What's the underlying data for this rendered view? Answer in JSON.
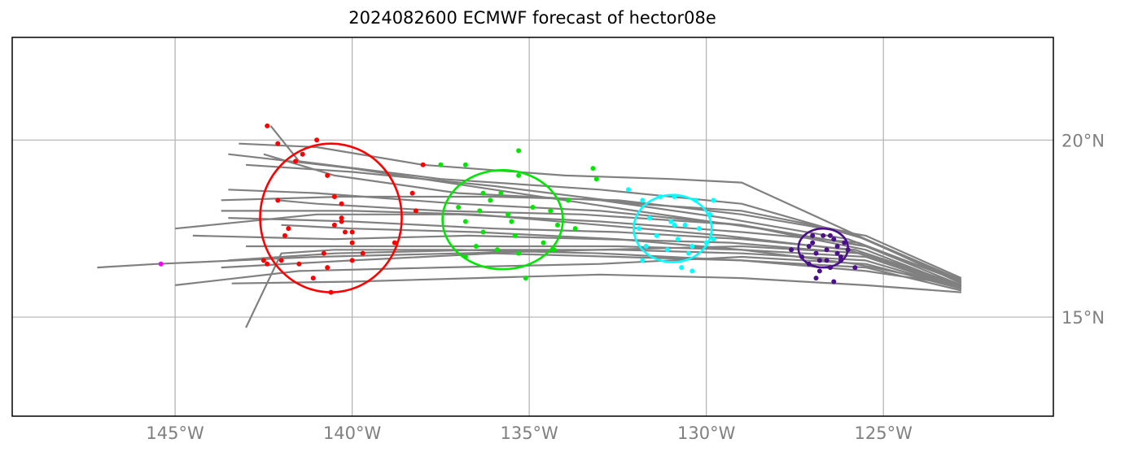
{
  "chart_data": {
    "type": "scatter",
    "title": "2024082600 ECMWF forecast of hector08e",
    "xlabel": "",
    "ylabel": "",
    "xlim": [
      -149.6,
      -120.2
    ],
    "ylim": [
      12.2,
      22.9
    ],
    "x_ticks": [
      -145,
      -140,
      -135,
      -130,
      -125
    ],
    "x_tick_labels": [
      "145°W",
      "140°W",
      "135°W",
      "130°W",
      "125°W"
    ],
    "y_ticks": [
      15,
      20
    ],
    "y_tick_labels": [
      "15°N",
      "20°N"
    ],
    "grid": true,
    "colors": {
      "tracks": "#808080",
      "grid": "#b0b0b0",
      "day1": "#4b0f8c",
      "day2": "#00ffff",
      "day3": "#00e600",
      "day4": "#ff0000",
      "day5": "#ff00ff"
    },
    "tracks": [
      [
        [
          -122.8,
          15.9
        ],
        [
          -125.5,
          17.0
        ],
        [
          -128.5,
          17.5
        ],
        [
          -132,
          18.0
        ],
        [
          -136,
          18.6
        ],
        [
          -140,
          19.2
        ],
        [
          -143.5,
          19.6
        ]
      ],
      [
        [
          -122.8,
          15.95
        ],
        [
          -125.5,
          17.2
        ],
        [
          -129,
          18.8
        ],
        [
          -131,
          18.9
        ],
        [
          -134,
          19.0
        ],
        [
          -138,
          19.3
        ],
        [
          -141,
          19.8
        ],
        [
          -143.2,
          19.9
        ]
      ],
      [
        [
          -122.8,
          16.0
        ],
        [
          -126,
          17.4
        ],
        [
          -129,
          18.0
        ],
        [
          -132,
          18.2
        ],
        [
          -136,
          18.7
        ],
        [
          -140,
          19.1
        ],
        [
          -143,
          19.3
        ]
      ],
      [
        [
          -122.8,
          16.0
        ],
        [
          -126,
          17.2
        ],
        [
          -129.5,
          17.8
        ],
        [
          -133,
          18.3
        ],
        [
          -137,
          18.5
        ],
        [
          -140.5,
          19.0
        ],
        [
          -142.5,
          19.6
        ]
      ],
      [
        [
          -122.8,
          15.85
        ],
        [
          -125.5,
          16.9
        ],
        [
          -129,
          17.6
        ],
        [
          -133,
          18.0
        ],
        [
          -137,
          18.2
        ],
        [
          -141,
          18.5
        ],
        [
          -143.5,
          18.6
        ]
      ],
      [
        [
          -122.8,
          15.9
        ],
        [
          -126,
          16.9
        ],
        [
          -129.5,
          17.3
        ],
        [
          -133,
          17.6
        ],
        [
          -136.5,
          17.9
        ],
        [
          -140,
          18.0
        ],
        [
          -143.7,
          18.0
        ]
      ],
      [
        [
          -122.8,
          15.9
        ],
        [
          -125.8,
          16.9
        ],
        [
          -129,
          17.2
        ],
        [
          -132.5,
          17.4
        ],
        [
          -136,
          17.5
        ],
        [
          -140,
          17.7
        ],
        [
          -143.5,
          17.8
        ]
      ],
      [
        [
          -122.8,
          15.85
        ],
        [
          -125.7,
          16.8
        ],
        [
          -129.3,
          17.1
        ],
        [
          -133,
          17.2
        ],
        [
          -136.7,
          17.3
        ],
        [
          -140.5,
          17.2
        ],
        [
          -144.5,
          17.3
        ]
      ],
      [
        [
          -122.8,
          15.8
        ],
        [
          -125.5,
          16.7
        ],
        [
          -129,
          16.9
        ],
        [
          -132.5,
          17.0
        ],
        [
          -136,
          17.0
        ],
        [
          -140,
          17.0
        ],
        [
          -143,
          17.0
        ]
      ],
      [
        [
          -122.8,
          15.8
        ],
        [
          -125.5,
          16.6
        ],
        [
          -129,
          16.8
        ],
        [
          -132.5,
          16.9
        ],
        [
          -136.3,
          16.9
        ],
        [
          -140.5,
          16.8
        ],
        [
          -143.5,
          16.6
        ]
      ],
      [
        [
          -122.8,
          15.75
        ],
        [
          -125.5,
          16.4
        ],
        [
          -129,
          16.6
        ],
        [
          -132.5,
          16.7
        ],
        [
          -136,
          16.8
        ],
        [
          -140,
          16.6
        ],
        [
          -143.7,
          16.4
        ]
      ],
      [
        [
          -122.8,
          15.8
        ],
        [
          -125.5,
          16.5
        ],
        [
          -129,
          16.7
        ],
        [
          -133,
          16.5
        ],
        [
          -137.5,
          16.4
        ],
        [
          -141.5,
          16.3
        ],
        [
          -145,
          15.9
        ]
      ],
      [
        [
          -122.8,
          15.85
        ],
        [
          -125.5,
          16.8
        ],
        [
          -129,
          17.0
        ],
        [
          -133,
          16.9
        ],
        [
          -137,
          16.8
        ],
        [
          -141,
          16.7
        ],
        [
          -145.5,
          16.5
        ],
        [
          -147.2,
          16.4
        ]
      ],
      [
        [
          -122.8,
          15.7
        ],
        [
          -125.5,
          15.9
        ],
        [
          -129,
          16.1
        ],
        [
          -133,
          16.2
        ],
        [
          -136.5,
          16.1
        ],
        [
          -140,
          16.0
        ],
        [
          -143.4,
          15.95
        ]
      ],
      [
        [
          -122.8,
          15.9
        ],
        [
          -125.5,
          16.3
        ],
        [
          -129,
          16.6
        ],
        [
          -133,
          16.8
        ],
        [
          -137,
          16.9
        ],
        [
          -140.5,
          16.9
        ],
        [
          -142,
          16.8
        ],
        [
          -143,
          14.7
        ]
      ],
      [
        [
          -122.8,
          16.1
        ],
        [
          -125.5,
          17.3
        ],
        [
          -129,
          17.9
        ],
        [
          -132.5,
          18.3
        ],
        [
          -136,
          18.4
        ],
        [
          -140.3,
          18.4
        ],
        [
          -143.7,
          18.3
        ]
      ],
      [
        [
          -122.8,
          16.0
        ],
        [
          -125.7,
          17.1
        ],
        [
          -129,
          17.4
        ],
        [
          -133,
          17.7
        ],
        [
          -137,
          17.9
        ],
        [
          -141,
          17.9
        ],
        [
          -145,
          17.5
        ]
      ],
      [
        [
          -122.8,
          15.9
        ],
        [
          -125.8,
          16.5
        ],
        [
          -129,
          16.9
        ],
        [
          -132.5,
          17.2
        ],
        [
          -136.5,
          17.4
        ],
        [
          -140,
          17.5
        ],
        [
          -142,
          17.6
        ]
      ],
      [
        [
          -122.8,
          16.0
        ],
        [
          -125.5,
          17.0
        ],
        [
          -129,
          17.6
        ],
        [
          -133.5,
          17.9
        ],
        [
          -137.5,
          18.0
        ],
        [
          -141,
          18.2
        ],
        [
          -142.1,
          18.3
        ]
      ],
      [
        [
          -122.8,
          16.05
        ],
        [
          -125.5,
          17.2
        ],
        [
          -129,
          18.2
        ],
        [
          -133,
          18.6
        ],
        [
          -137.5,
          18.9
        ],
        [
          -141.5,
          19.4
        ],
        [
          -142.3,
          20.4
        ]
      ]
    ],
    "points": {
      "day1": [
        [
          -127.6,
          16.9
        ],
        [
          -127.1,
          17.0
        ],
        [
          -127.0,
          17.1
        ],
        [
          -126.9,
          16.8
        ],
        [
          -126.6,
          16.9
        ],
        [
          -126.5,
          17.3
        ],
        [
          -126.3,
          17.0
        ],
        [
          -126.0,
          16.9
        ],
        [
          -126.2,
          16.6
        ],
        [
          -126.5,
          16.4
        ],
        [
          -126.8,
          16.3
        ],
        [
          -127.1,
          16.5
        ],
        [
          -126.4,
          17.2
        ],
        [
          -126.7,
          17.3
        ],
        [
          -126.2,
          16.7
        ],
        [
          -126.9,
          16.1
        ],
        [
          -126.4,
          16.0
        ],
        [
          -125.8,
          16.4
        ],
        [
          -127.3,
          16.7
        ],
        [
          -126.6,
          16.6
        ],
        [
          -126.3,
          16.8
        ],
        [
          -126.1,
          17.1
        ],
        [
          -126.8,
          16.6
        ],
        [
          -127.0,
          17.3
        ]
      ],
      "day2": [
        [
          -132.2,
          18.6
        ],
        [
          -131.8,
          18.3
        ],
        [
          -131.3,
          18.4
        ],
        [
          -130.9,
          18.4
        ],
        [
          -130.3,
          18.3
        ],
        [
          -129.8,
          18.3
        ],
        [
          -129.9,
          17.9
        ],
        [
          -131.6,
          17.8
        ],
        [
          -130.9,
          17.6
        ],
        [
          -130.6,
          17.6
        ],
        [
          -130.2,
          17.5
        ],
        [
          -131.9,
          17.5
        ],
        [
          -131.4,
          17.3
        ],
        [
          -130.8,
          17.2
        ],
        [
          -130.0,
          17.1
        ],
        [
          -131.7,
          17.0
        ],
        [
          -131.1,
          16.9
        ],
        [
          -130.5,
          16.8
        ],
        [
          -131.8,
          16.6
        ],
        [
          -130.7,
          16.4
        ],
        [
          -130.4,
          16.3
        ],
        [
          -129.8,
          17.2
        ],
        [
          -131.0,
          17.7
        ],
        [
          -130.4,
          17.0
        ]
      ],
      "day3": [
        [
          -137.5,
          19.3
        ],
        [
          -136.8,
          19.3
        ],
        [
          -135.3,
          19.0
        ],
        [
          -133.9,
          18.3
        ],
        [
          -136.3,
          18.5
        ],
        [
          -135.8,
          18.5
        ],
        [
          -134.9,
          18.1
        ],
        [
          -134.4,
          18.0
        ],
        [
          -137.0,
          18.1
        ],
        [
          -136.4,
          18.0
        ],
        [
          -135.6,
          17.9
        ],
        [
          -136.8,
          17.7
        ],
        [
          -135.5,
          17.7
        ],
        [
          -134.2,
          17.6
        ],
        [
          -136.3,
          17.4
        ],
        [
          -135.4,
          17.3
        ],
        [
          -134.6,
          17.1
        ],
        [
          -136.5,
          17.0
        ],
        [
          -135.9,
          16.9
        ],
        [
          -134.3,
          16.9
        ],
        [
          -135.3,
          16.8
        ],
        [
          -136.8,
          16.7
        ],
        [
          -135.1,
          16.1
        ],
        [
          -135.3,
          19.7
        ],
        [
          -133.2,
          19.2
        ],
        [
          -133.1,
          18.9
        ],
        [
          -133.7,
          17.5
        ],
        [
          -136.1,
          18.3
        ]
      ],
      "day4": [
        [
          -142.4,
          20.4
        ],
        [
          -142.1,
          19.9
        ],
        [
          -141.0,
          20.0
        ],
        [
          -141.4,
          19.6
        ],
        [
          -141.6,
          19.4
        ],
        [
          -140.7,
          19.0
        ],
        [
          -140.5,
          18.4
        ],
        [
          -140.3,
          18.2
        ],
        [
          -140.3,
          17.8
        ],
        [
          -140.3,
          17.7
        ],
        [
          -140.5,
          17.6
        ],
        [
          -140.2,
          17.4
        ],
        [
          -140.0,
          17.1
        ],
        [
          -141.8,
          17.5
        ],
        [
          -141.9,
          17.3
        ],
        [
          -142.1,
          18.3
        ],
        [
          -140.0,
          17.4
        ],
        [
          -139.7,
          16.8
        ],
        [
          -140.8,
          16.8
        ],
        [
          -140.0,
          16.6
        ],
        [
          -140.7,
          16.4
        ],
        [
          -142.5,
          16.6
        ],
        [
          -142.0,
          16.6
        ],
        [
          -141.5,
          16.5
        ],
        [
          -142.4,
          16.5
        ],
        [
          -141.1,
          16.1
        ],
        [
          -140.6,
          15.7
        ],
        [
          -138.8,
          17.1
        ],
        [
          -138.3,
          18.5
        ],
        [
          -138.2,
          18.0
        ],
        [
          -138.0,
          19.3
        ]
      ],
      "day5": [
        [
          -145.4,
          16.5
        ]
      ]
    },
    "ellipses": [
      {
        "group": "day1",
        "center": [
          -126.7,
          16.95
        ],
        "radius_x": 0.7,
        "radius_y": 0.55
      },
      {
        "group": "day2",
        "center": [
          -130.95,
          17.5
        ],
        "radius_x": 1.1,
        "radius_y": 0.95
      },
      {
        "group": "day3",
        "center": [
          -135.75,
          17.75
        ],
        "radius_x": 1.7,
        "radius_y": 1.4
      },
      {
        "group": "day4",
        "center": [
          -140.6,
          17.8
        ],
        "radius_x": 2.0,
        "radius_y": 2.1
      }
    ]
  }
}
